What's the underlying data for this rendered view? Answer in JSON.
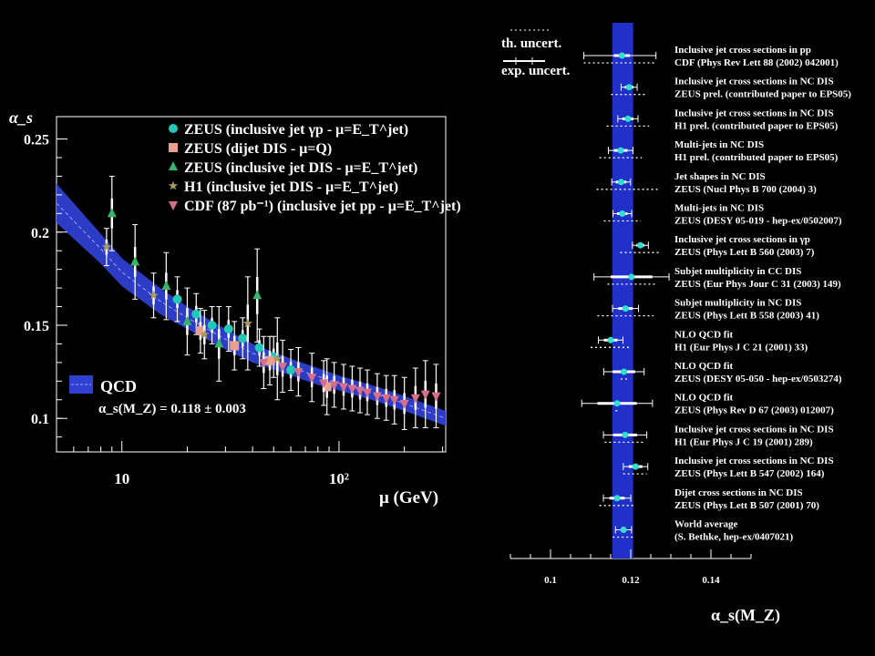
{
  "chart_data": [
    {
      "type": "scatter",
      "ylabel": "α_s",
      "xlabel": "μ (GeV)",
      "xscale": "log",
      "xlim": [
        5,
        310
      ],
      "ylim": [
        0.082,
        0.262
      ],
      "yticks": [
        0.1,
        0.15,
        0.2,
        0.25
      ],
      "ytick_labels": [
        "0.1",
        "0.15",
        "0.2",
        "0.25"
      ],
      "xticks": [
        10,
        100
      ],
      "xtick_labels": [
        "10",
        "10²"
      ],
      "legend_position": "top-right",
      "legend": [
        {
          "label": "ZEUS (inclusive jet γp - μ=E_T^jet)",
          "marker": "circle",
          "color": "#23c9b6"
        },
        {
          "label": "ZEUS (dijet DIS - μ=Q)",
          "marker": "square",
          "color": "#e7a18c"
        },
        {
          "label": "ZEUS (inclusive jet DIS - μ=E_T^jet)",
          "marker": "triangle-up",
          "color": "#35b56a"
        },
        {
          "label": "H1 (inclusive jet DIS - μ=E_T^jet)",
          "marker": "star",
          "color": "#a99b5a"
        },
        {
          "label": "CDF (87 pb⁻¹) (inclusive jet pp - μ=E_T^jet)",
          "marker": "triangle-down",
          "color": "#d86f8a"
        }
      ],
      "band": {
        "label": "QCD",
        "sublabel": "α_s(M_Z) = 0.118 ± 0.003",
        "color": "#2f3fd0",
        "x": [
          5,
          8,
          10,
          15,
          20,
          30,
          40,
          60,
          80,
          100,
          150,
          200,
          310
        ],
        "lo": [
          0.205,
          0.183,
          0.171,
          0.156,
          0.148,
          0.137,
          0.13,
          0.123,
          0.118,
          0.115,
          0.109,
          0.104,
          0.096
        ],
        "hi": [
          0.226,
          0.199,
          0.186,
          0.17,
          0.16,
          0.148,
          0.14,
          0.132,
          0.127,
          0.123,
          0.117,
          0.112,
          0.104
        ]
      },
      "series": [
        {
          "name": "ZEUS (inclusive jet γp - μ=E_T^jet)",
          "marker": "circle",
          "color": "#23c9b6",
          "points": [
            [
              18,
              0.164,
              0.012
            ],
            [
              22,
              0.156,
              0.011
            ],
            [
              26,
              0.15,
              0.01
            ],
            [
              31,
              0.148,
              0.012
            ],
            [
              36,
              0.143,
              0.011
            ],
            [
              43,
              0.138,
              0.01
            ],
            [
              50,
              0.133,
              0.011
            ],
            [
              60,
              0.126,
              0.011
            ]
          ]
        },
        {
          "name": "ZEUS (dijet DIS - μ=Q)",
          "marker": "square",
          "color": "#e7a18c",
          "points": [
            [
              23,
              0.147,
              0.012
            ],
            [
              33,
              0.139,
              0.013
            ],
            [
              48,
              0.131,
              0.013
            ],
            [
              88,
              0.117,
              0.015
            ]
          ]
        },
        {
          "name": "ZEUS (inclusive jet DIS - μ=E_T^jet)",
          "marker": "triangle-up",
          "color": "#35b56a",
          "points": [
            [
              9,
              0.21,
              0.02
            ],
            [
              11.5,
              0.184,
              0.02
            ],
            [
              16,
              0.171,
              0.018
            ],
            [
              20,
              0.152,
              0.018
            ],
            [
              28,
              0.14,
              0.02
            ],
            [
              42,
              0.166,
              0.025
            ]
          ]
        },
        {
          "name": "H1 (inclusive jet DIS - μ=E_T^jet)",
          "marker": "star",
          "color": "#a99b5a",
          "points": [
            [
              8.5,
              0.192,
              0.01
            ],
            [
              14,
              0.166,
              0.012
            ],
            [
              24,
              0.145,
              0.013
            ],
            [
              38,
              0.151,
              0.025
            ],
            [
              52,
              0.132,
              0.022
            ]
          ]
        },
        {
          "name": "CDF (87 pb⁻¹) (inclusive jet pp - μ=E_T^jet)",
          "marker": "triangle-down",
          "color": "#d86f8a",
          "points": [
            [
              45,
              0.13,
              0.014
            ],
            [
              55,
              0.128,
              0.014
            ],
            [
              65,
              0.125,
              0.013
            ],
            [
              75,
              0.122,
              0.013
            ],
            [
              85,
              0.119,
              0.012
            ],
            [
              95,
              0.118,
              0.012
            ],
            [
              105,
              0.117,
              0.012
            ],
            [
              115,
              0.116,
              0.012
            ],
            [
              125,
              0.115,
              0.012
            ],
            [
              135,
              0.114,
              0.012
            ],
            [
              150,
              0.112,
              0.012
            ],
            [
              165,
              0.111,
              0.012
            ],
            [
              180,
              0.11,
              0.013
            ],
            [
              200,
              0.108,
              0.014
            ],
            [
              225,
              0.111,
              0.016
            ],
            [
              250,
              0.113,
              0.018
            ],
            [
              280,
              0.112,
              0.017
            ]
          ]
        }
      ]
    },
    {
      "type": "scatter",
      "xlabel": "α_s(M_Z)",
      "xlim": [
        0.09,
        0.15
      ],
      "xticks": [
        0.1,
        0.12,
        0.14
      ],
      "xtick_labels": [
        "0.1",
        "0.12",
        "0.14"
      ],
      "band": {
        "center": 0.118,
        "lo": 0.1154,
        "hi": 0.1206,
        "color": "#2030c8"
      },
      "legend": [
        {
          "label": "th. uncert.",
          "style": "dotted"
        },
        {
          "label": "exp. uncert.",
          "style": "solid"
        }
      ],
      "measurements": [
        {
          "line1": "Inclusive jet cross sections in pp",
          "line2": "CDF (Phys Rev Lett 88 (2002) 042001)",
          "value": 0.1178,
          "exp": 0.002,
          "th_lo": 0.0095,
          "th_hi": 0.0085
        },
        {
          "line1": "Inclusive jet cross sections in NC DIS",
          "line2": "ZEUS prel. (contributed paper to EPS05)",
          "value": 0.1196,
          "exp": 0.0011,
          "th_lo": 0.0045,
          "th_hi": 0.0045
        },
        {
          "line1": "Inclusive jet cross sections in NC DIS",
          "line2": "H1 prel. (contributed paper to EPS05)",
          "value": 0.1193,
          "exp": 0.0014,
          "th_lo": 0.0053,
          "th_hi": 0.0053
        },
        {
          "line1": "Multi-jets in NC DIS",
          "line2": "H1 prel. (contributed paper to EPS05)",
          "value": 0.1175,
          "exp": 0.0017,
          "th_lo": 0.0053,
          "th_hi": 0.0053
        },
        {
          "line1": "Jet shapes in NC DIS",
          "line2": "ZEUS (Nucl Phys B 700 (2004) 3)",
          "value": 0.1176,
          "exp": 0.0013,
          "th_lo": 0.0061,
          "th_hi": 0.0091
        },
        {
          "line1": "Multi-jets in NC DIS",
          "line2": "ZEUS (DESY 05-019 - hep-ex/0502007)",
          "value": 0.1179,
          "exp": 0.0013,
          "th_lo": 0.0046,
          "th_hi": 0.0046
        },
        {
          "line1": "Inclusive jet cross sections in γp",
          "line2": "ZEUS (Phys Lett B 560 (2003) 7)",
          "value": 0.1224,
          "exp": 0.001,
          "th_lo": 0.005,
          "th_hi": 0.005
        },
        {
          "line1": "Subjet multiplicity in CC DIS",
          "line2": "ZEUS (Eur Phys Jour C 31 (2003) 149)",
          "value": 0.1202,
          "exp": 0.0052,
          "th_lo": 0.006,
          "th_hi": 0.006
        },
        {
          "line1": "Subjet multiplicity in NC DIS",
          "line2": "ZEUS (Phys Lett B 558 (2003) 41)",
          "value": 0.1187,
          "exp": 0.0018,
          "th_lo": 0.007,
          "th_hi": 0.007
        },
        {
          "line1": "NLO QCD fit",
          "line2": "H1 (Eur Phys J C 21 (2001) 33)",
          "value": 0.115,
          "exp": 0.0017,
          "th_lo": 0.005,
          "th_hi": 0.005
        },
        {
          "line1": "NLO QCD fit",
          "line2": "ZEUS (DESY 05-050 - hep-ex/0503274)",
          "value": 0.1183,
          "exp": 0.0028,
          "th_lo": 0.0008,
          "th_hi": 0.0008
        },
        {
          "line1": "NLO QCD fit",
          "line2": "ZEUS (Phys Rev D 67 (2003) 012007)",
          "value": 0.1166,
          "exp": 0.0049,
          "th_lo": 0.0004,
          "th_hi": 0.0004
        },
        {
          "line1": "Inclusive jet cross sections in NC DIS",
          "line2": "H1 (Eur Phys J C 19 (2001) 289)",
          "value": 0.1186,
          "exp": 0.003,
          "th_lo": 0.0051,
          "th_hi": 0.0051
        },
        {
          "line1": "Inclusive jet cross sections in NC DIS",
          "line2": "ZEUS (Phys Lett B 547 (2002) 164)",
          "value": 0.1212,
          "exp": 0.0017,
          "th_lo": 0.0031,
          "th_hi": 0.0028
        },
        {
          "line1": "Dijet cross sections in NC DIS",
          "line2": "ZEUS (Phys Lett B 507 (2001) 70)",
          "value": 0.1166,
          "exp": 0.0019,
          "th_lo": 0.0044,
          "th_hi": 0.0044
        },
        {
          "line1": "World average",
          "line2": "(S. Bethke, hep-ex/0407021)",
          "value": 0.1182,
          "exp": 0.0,
          "th_lo": 0.0027,
          "th_hi": 0.0027
        }
      ]
    }
  ]
}
